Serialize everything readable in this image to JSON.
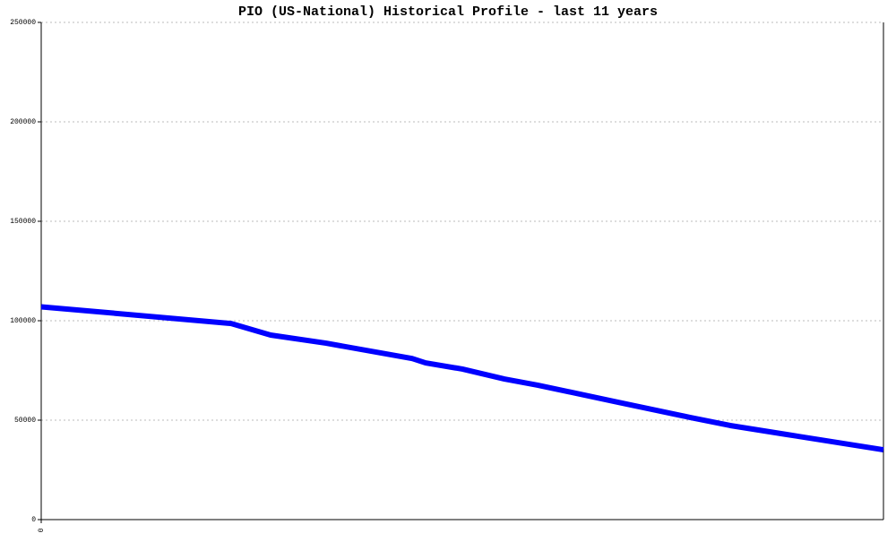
{
  "chart_data": {
    "type": "line",
    "title": "PIO (US-National) Historical Profile - last 11 years",
    "x": [
      0,
      212,
      256,
      318,
      414,
      429,
      470,
      517,
      554,
      644,
      724,
      769,
      832,
      940
    ],
    "series": [
      {
        "color": "#0000ff",
        "values": [
          107000,
          98600,
          92800,
          88700,
          81000,
          78800,
          75700,
          70700,
          67600,
          59000,
          51400,
          47300,
          42800,
          35100
        ]
      }
    ],
    "xlim": [
      0,
      940
    ],
    "xticks": [
      0
    ],
    "ylim": [
      0,
      250000
    ],
    "yticks": [
      0,
      50000,
      100000,
      150000,
      200000,
      250000
    ],
    "grid": true
  }
}
